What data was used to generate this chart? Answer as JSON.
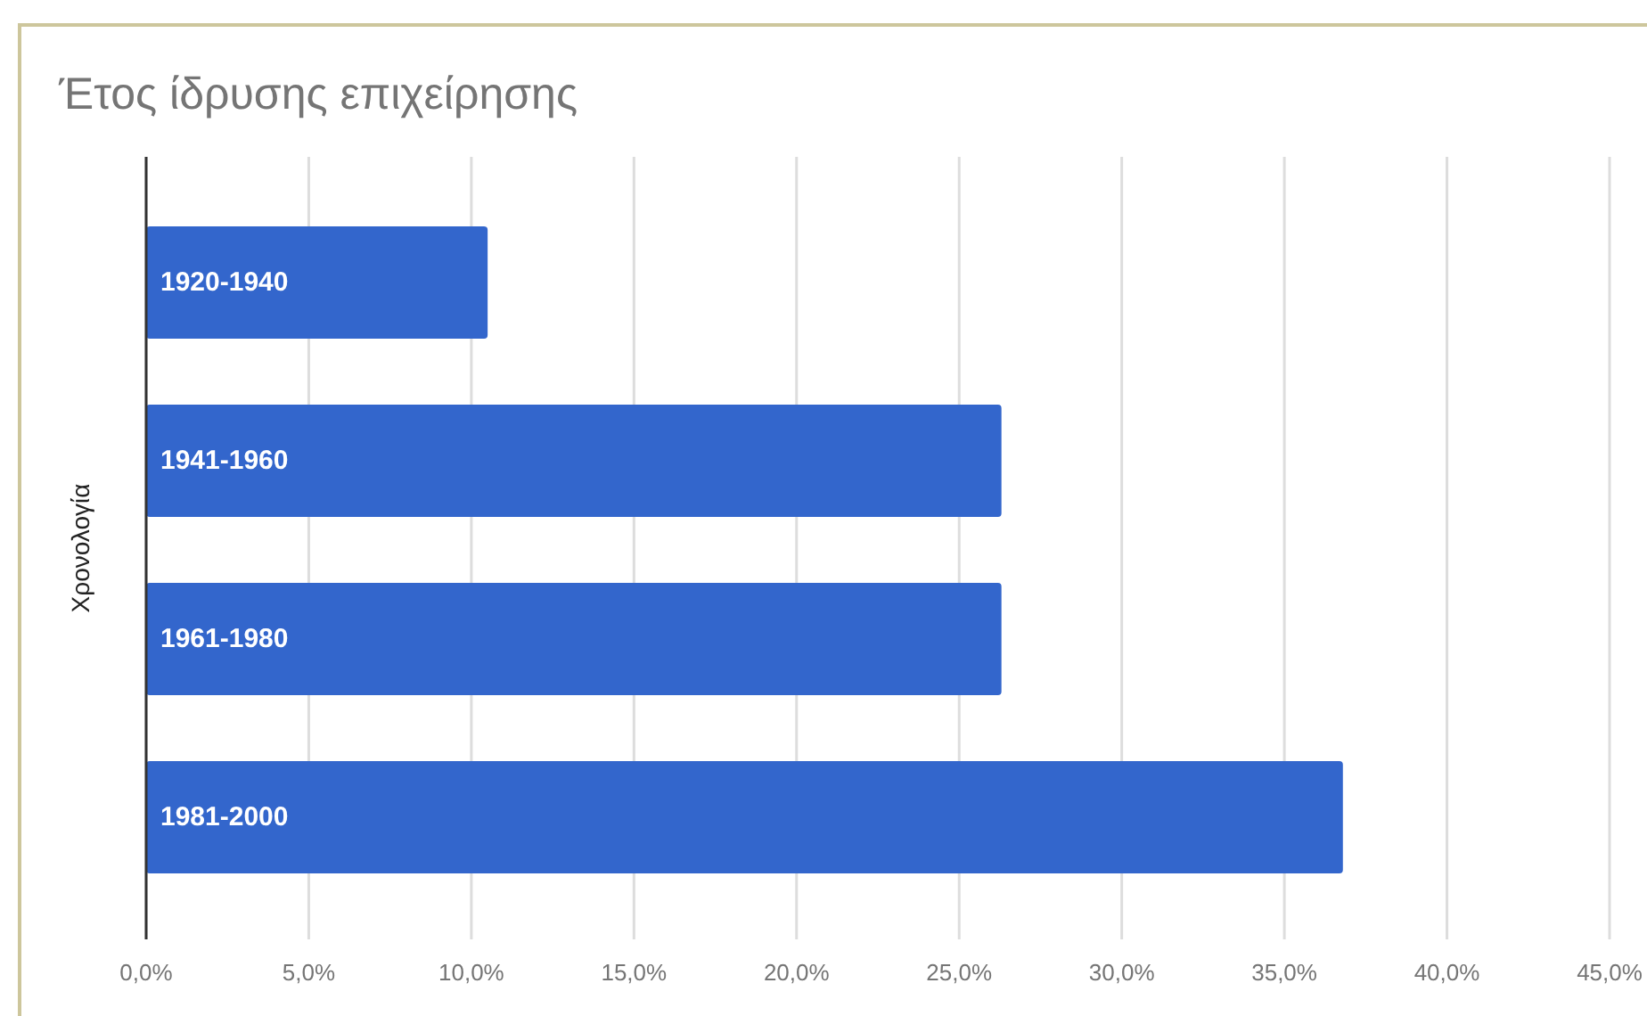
{
  "chart_data": {
    "type": "bar",
    "orientation": "horizontal",
    "title": "Έτος ίδρυσης επιχείρησης",
    "ylabel": "Χρονολογία",
    "categories": [
      "1920-1940",
      "1941-1960",
      "1961-1980",
      "1981-2000"
    ],
    "values": [
      10.5,
      26.3,
      26.3,
      36.8
    ],
    "color": "#3366cc",
    "xlim": [
      0,
      45
    ],
    "xticks": [
      {
        "value": 0,
        "label": "0,0%"
      },
      {
        "value": 5,
        "label": "5,0%"
      },
      {
        "value": 10,
        "label": "10,0%"
      },
      {
        "value": 15,
        "label": "15,0%"
      },
      {
        "value": 20,
        "label": "20,0%"
      },
      {
        "value": 25,
        "label": "25,0%"
      },
      {
        "value": 30,
        "label": "30,0%"
      },
      {
        "value": 35,
        "label": "35,0%"
      },
      {
        "value": 40,
        "label": "40,0%"
      },
      {
        "value": 45,
        "label": "45,0%"
      }
    ],
    "grid": "x"
  }
}
